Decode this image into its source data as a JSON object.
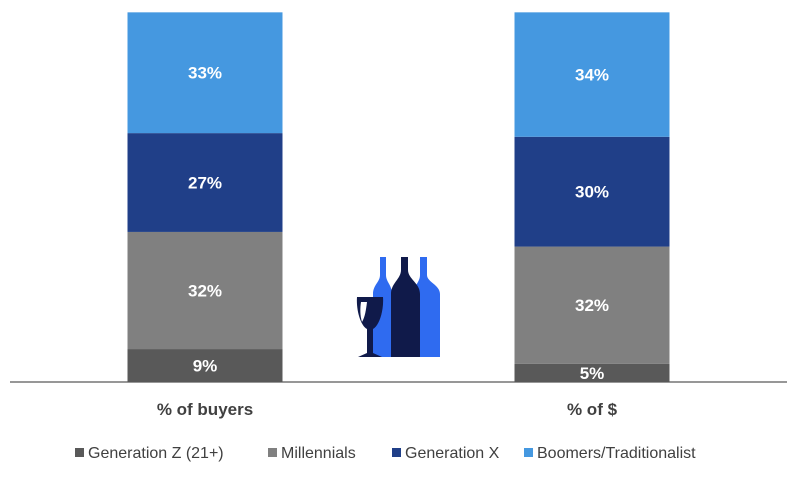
{
  "chart_data": {
    "type": "bar",
    "stacked": true,
    "categories": [
      "% of buyers",
      "% of $"
    ],
    "series": [
      {
        "name": "Generation Z (21+)",
        "values": [
          9,
          5
        ],
        "labels": [
          "9%",
          "5%"
        ],
        "color": "#595959"
      },
      {
        "name": "Millennials",
        "values": [
          32,
          32
        ],
        "labels": [
          "32%",
          "32%"
        ],
        "color": "#808080"
      },
      {
        "name": "Generation X",
        "values": [
          27,
          30
        ],
        "labels": [
          "27%",
          "30%"
        ],
        "color": "#203f88"
      },
      {
        "name": "Boomers/Traditionalist",
        "values": [
          33,
          34
        ],
        "labels": [
          "33%",
          "34%"
        ],
        "color": "#4598e0"
      }
    ],
    "title": "",
    "xlabel": "",
    "ylabel": "",
    "ylim": [
      0,
      100
    ],
    "grid": false,
    "legend_position": "bottom"
  },
  "icon": {
    "name": "wine-glass-and-bottles-icon",
    "colors": {
      "dark": "#101a4a",
      "light": "#2f6bf0"
    }
  },
  "colors": {
    "axis": "#595959",
    "category_label": "#404040",
    "legend_text": "#404040",
    "data_label": "#ffffff"
  }
}
